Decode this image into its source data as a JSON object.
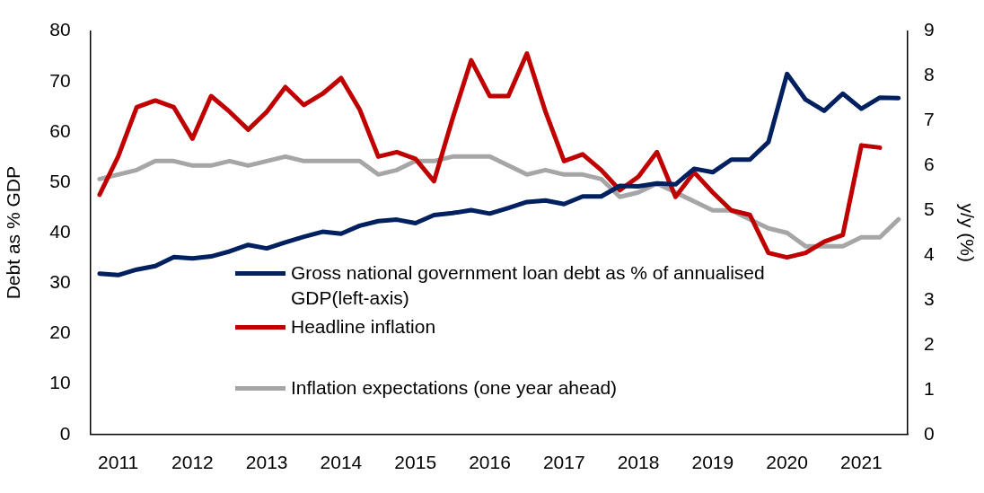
{
  "chart_data": {
    "type": "line",
    "ylabel": "Debt as % GDP",
    "y2label": "y/y (%)",
    "categories": [
      null,
      "2011",
      null,
      null,
      null,
      "2012",
      null,
      null,
      null,
      "2013",
      null,
      null,
      null,
      "2014",
      null,
      null,
      null,
      "2015",
      null,
      null,
      null,
      "2016",
      null,
      null,
      null,
      "2017",
      null,
      null,
      null,
      "2018",
      null,
      null,
      null,
      "2019",
      null,
      null,
      null,
      "2020",
      null,
      null,
      null,
      "2021",
      null,
      null
    ],
    "ylim": [
      0,
      80
    ],
    "yticks": [
      0,
      10,
      20,
      30,
      40,
      50,
      60,
      70,
      80
    ],
    "y2lim": [
      0,
      9
    ],
    "y2ticks": [
      0,
      1,
      2,
      3,
      4,
      5,
      6,
      7,
      8,
      9
    ],
    "grid": false,
    "legend": "center",
    "line_style": "solid",
    "marker": "none",
    "series": [
      {
        "name": "Gross national government loan debt as % of annualised GDP(left-axis)",
        "color": "#002060",
        "values": [
          31.9,
          31.6,
          32.7,
          33.4,
          35.2,
          34.9,
          35.3,
          36.3,
          37.6,
          36.9,
          38.1,
          39.2,
          40.2,
          39.8,
          41.4,
          42.3,
          42.6,
          41.9,
          43.5,
          43.9,
          44.5,
          43.8,
          44.9,
          46.1,
          46.4,
          45.7,
          47.2,
          47.2,
          49.3,
          49.2,
          49.8,
          49.6,
          52.7,
          52.0,
          54.5,
          54.5,
          58.0,
          71.5,
          66.4,
          64.2,
          67.6,
          64.6,
          66.8,
          66.7
        ]
      },
      {
        "name": " Headline inflation",
        "color": "#c00000",
        "axis": "y2",
        "values": [
          5.35,
          6.2,
          7.3,
          7.45,
          7.3,
          6.6,
          7.55,
          7.2,
          6.8,
          7.2,
          7.75,
          7.35,
          7.6,
          7.95,
          7.25,
          6.2,
          6.3,
          6.15,
          5.65,
          7.05,
          8.35,
          7.55,
          7.55,
          8.5,
          7.2,
          6.1,
          6.25,
          5.9,
          5.45,
          5.75,
          6.3,
          5.3,
          5.85,
          5.4,
          5.0,
          4.9,
          4.05,
          3.95,
          4.05,
          4.3,
          4.45,
          6.45,
          6.4,
          null
        ]
      },
      {
        "name": "Inflation expectations (one year ahead)",
        "color": "#a6a6a6",
        "axis": "y2",
        "values": [
          5.7,
          5.8,
          5.9,
          6.1,
          6.1,
          6.0,
          6.0,
          6.1,
          6.0,
          6.1,
          6.2,
          6.1,
          6.1,
          6.1,
          6.1,
          5.8,
          5.9,
          6.1,
          6.1,
          6.2,
          6.2,
          6.2,
          6.0,
          5.8,
          5.9,
          5.8,
          5.8,
          5.7,
          5.3,
          5.4,
          5.6,
          5.4,
          5.2,
          5.0,
          5.0,
          4.8,
          4.6,
          4.5,
          4.2,
          4.2,
          4.2,
          4.4,
          4.4,
          4.8
        ]
      }
    ]
  }
}
